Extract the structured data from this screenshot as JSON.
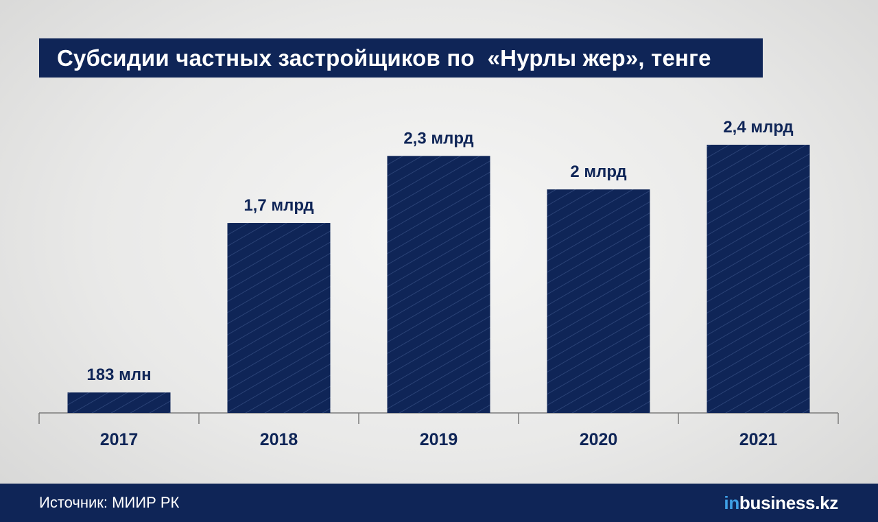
{
  "header": {
    "title": "Субсидии частных застройщиков по  «Нурлы жер», тенге"
  },
  "footer": {
    "source": "Источник: МИИР РК",
    "logo_prefix": "in",
    "logo_main": "business.kz"
  },
  "colors": {
    "bar": "#0f2557",
    "bar_hatch": "#2a4276",
    "axis": "#7a7a7a",
    "text": "#0f2557",
    "logo_accent": "#3fa0e6"
  },
  "chart_data": {
    "type": "bar",
    "title": "Субсидии частных застройщиков по  «Нурлы жер», тенге",
    "categories": [
      "2017",
      "2018",
      "2019",
      "2020",
      "2021"
    ],
    "values": [
      0.183,
      1.7,
      2.3,
      2.0,
      2.4
    ],
    "value_labels": [
      "183 млн",
      "1,7 млрд",
      "2,3 млрд",
      "2 млрд",
      "2,4 млрд"
    ],
    "unit": "тенге",
    "xlabel": "",
    "ylabel": "",
    "ylim": [
      0,
      2.4
    ],
    "grid": false,
    "legend": "none"
  }
}
